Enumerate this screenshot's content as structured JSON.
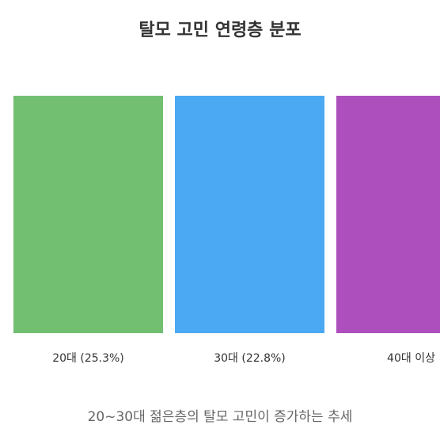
{
  "chart_data": {
    "type": "bar",
    "title": "탈모 고민 연령층 분포",
    "categories": [
      "20대 (25.3%)",
      "30대 (22.8%)",
      "40대 이상"
    ],
    "series": [
      {
        "values": [
          25.3,
          22.8,
          null
        ],
        "colors": [
          "#72bf72",
          "#4aa9f2",
          "#ad4fbd"
        ]
      }
    ],
    "caption": "20~30대 젊은층의 탈모 고민이 증가하는 추세",
    "xlabel": "",
    "ylabel": "",
    "grid": false,
    "legend": "none"
  }
}
